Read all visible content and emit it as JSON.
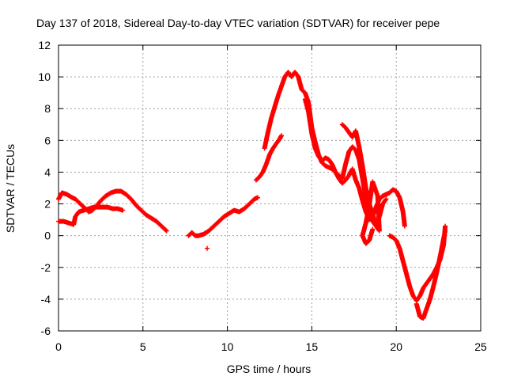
{
  "chart_data": {
    "type": "scatter",
    "title": "Day 137 of 2018, Sidereal Day-to-day VTEC variation (SDTVAR) for receiver pepe",
    "xlabel": "GPS time / hours",
    "ylabel": "SDTVAR / TECUs",
    "xlim": [
      0,
      25
    ],
    "ylim": [
      -6,
      12
    ],
    "xticks": [
      0,
      5,
      10,
      15,
      20,
      25
    ],
    "yticks": [
      -6,
      -4,
      -2,
      0,
      2,
      4,
      6,
      8,
      10,
      12
    ],
    "grid": true,
    "marker": "+",
    "color": "#ff0000",
    "series": [
      {
        "segments": [
          [
            [
              0.0,
              2.3
            ],
            [
              0.2,
              2.7
            ],
            [
              0.5,
              2.6
            ],
            [
              0.8,
              2.4
            ],
            [
              1.0,
              2.3
            ],
            [
              1.2,
              2.1
            ],
            [
              1.4,
              1.9
            ],
            [
              1.6,
              1.7
            ],
            [
              1.8,
              1.5
            ],
            [
              2.0,
              1.6
            ],
            [
              2.2,
              1.8
            ],
            [
              2.5,
              2.2
            ],
            [
              2.8,
              2.5
            ],
            [
              3.1,
              2.7
            ],
            [
              3.4,
              2.8
            ],
            [
              3.7,
              2.8
            ],
            [
              4.0,
              2.6
            ],
            [
              4.3,
              2.3
            ],
            [
              4.6,
              1.9
            ],
            [
              4.9,
              1.6
            ],
            [
              5.2,
              1.3
            ],
            [
              5.5,
              1.1
            ],
            [
              5.8,
              0.9
            ],
            [
              6.1,
              0.6
            ],
            [
              6.4,
              0.3
            ]
          ],
          [
            [
              0.0,
              0.9
            ],
            [
              0.3,
              0.9
            ],
            [
              0.6,
              0.8
            ],
            [
              0.9,
              0.7
            ],
            [
              1.0,
              1.2
            ],
            [
              1.2,
              1.5
            ],
            [
              1.5,
              1.6
            ],
            [
              1.8,
              1.7
            ],
            [
              2.1,
              1.8
            ],
            [
              2.5,
              1.8
            ],
            [
              2.9,
              1.8
            ],
            [
              3.2,
              1.7
            ],
            [
              3.5,
              1.7
            ],
            [
              3.8,
              1.6
            ]
          ],
          [
            [
              7.7,
              0.0
            ],
            [
              7.9,
              0.2
            ],
            [
              8.1,
              0.0
            ],
            [
              8.3,
              0.0
            ],
            [
              8.6,
              0.1
            ],
            [
              8.9,
              0.3
            ],
            [
              9.2,
              0.6
            ],
            [
              9.5,
              0.9
            ],
            [
              9.8,
              1.2
            ],
            [
              10.1,
              1.4
            ],
            [
              10.4,
              1.6
            ],
            [
              10.7,
              1.5
            ],
            [
              11.0,
              1.7
            ],
            [
              11.3,
              2.0
            ],
            [
              11.6,
              2.3
            ],
            [
              11.8,
              2.4
            ]
          ],
          [
            [
              8.8,
              -0.8
            ]
          ],
          [
            [
              11.7,
              3.5
            ],
            [
              11.9,
              3.7
            ],
            [
              12.1,
              4.0
            ],
            [
              12.3,
              4.5
            ],
            [
              12.5,
              5.1
            ],
            [
              12.7,
              5.5
            ],
            [
              12.9,
              5.8
            ],
            [
              13.1,
              6.1
            ],
            [
              13.2,
              6.3
            ]
          ],
          [
            [
              12.2,
              5.5
            ],
            [
              12.4,
              6.5
            ],
            [
              12.6,
              7.4
            ],
            [
              12.8,
              8.1
            ],
            [
              13.0,
              8.8
            ],
            [
              13.2,
              9.4
            ],
            [
              13.4,
              10.0
            ],
            [
              13.6,
              10.3
            ],
            [
              13.8,
              10.0
            ],
            [
              14.0,
              10.3
            ],
            [
              14.2,
              10.0
            ],
            [
              14.4,
              9.2
            ],
            [
              14.6,
              9.0
            ],
            [
              14.8,
              8.4
            ],
            [
              15.0,
              6.8
            ],
            [
              15.2,
              5.9
            ],
            [
              15.4,
              5.1
            ],
            [
              15.6,
              4.6
            ],
            [
              15.8,
              4.4
            ],
            [
              16.0,
              4.3
            ],
            [
              16.2,
              4.2
            ],
            [
              16.4,
              4.0
            ],
            [
              16.6,
              3.6
            ],
            [
              16.8,
              3.3
            ],
            [
              17.0,
              3.5
            ],
            [
              17.2,
              3.8
            ],
            [
              17.4,
              4.2
            ],
            [
              17.6,
              3.5
            ],
            [
              17.8,
              3.0
            ],
            [
              18.0,
              2.2
            ],
            [
              18.2,
              1.5
            ],
            [
              18.4,
              1.0
            ],
            [
              18.6,
              1.2
            ],
            [
              18.8,
              1.8
            ],
            [
              19.0,
              2.3
            ],
            [
              19.2,
              2.5
            ],
            [
              19.4,
              2.6
            ],
            [
              19.6,
              2.7
            ],
            [
              19.8,
              2.9
            ],
            [
              20.0,
              2.8
            ],
            [
              20.2,
              2.4
            ],
            [
              20.4,
              1.5
            ],
            [
              20.5,
              0.6
            ]
          ],
          [
            [
              14.6,
              8.6
            ],
            [
              14.8,
              7.8
            ],
            [
              15.0,
              6.4
            ],
            [
              15.2,
              5.5
            ],
            [
              15.4,
              5.0
            ],
            [
              15.6,
              4.7
            ],
            [
              15.8,
              4.9
            ],
            [
              16.0,
              4.8
            ],
            [
              16.2,
              4.5
            ],
            [
              16.4,
              4.0
            ],
            [
              16.6,
              3.8
            ],
            [
              16.8,
              3.6
            ],
            [
              17.0,
              4.5
            ],
            [
              17.2,
              5.3
            ],
            [
              17.4,
              5.6
            ],
            [
              17.6,
              5.4
            ],
            [
              17.8,
              4.8
            ],
            [
              18.0,
              3.6
            ],
            [
              18.2,
              2.4
            ],
            [
              18.4,
              1.6
            ],
            [
              18.6,
              0.9
            ],
            [
              18.8,
              0.6
            ],
            [
              19.0,
              1.2
            ],
            [
              19.2,
              2.0
            ],
            [
              19.4,
              2.3
            ]
          ],
          [
            [
              16.8,
              7.0
            ],
            [
              17.0,
              6.8
            ],
            [
              17.2,
              6.5
            ],
            [
              17.4,
              6.2
            ],
            [
              17.6,
              6.6
            ],
            [
              17.8,
              5.6
            ],
            [
              18.0,
              4.4
            ],
            [
              18.2,
              3.0
            ],
            [
              18.4,
              2.0
            ],
            [
              18.6,
              1.4
            ],
            [
              18.8,
              0.6
            ],
            [
              19.0,
              0.3
            ],
            [
              18.9,
              2.5
            ],
            [
              18.6,
              3.4
            ],
            [
              18.4,
              1.9
            ],
            [
              18.2,
              0.8
            ],
            [
              18.0,
              0.0
            ],
            [
              18.2,
              -0.5
            ],
            [
              18.4,
              -0.3
            ],
            [
              18.6,
              0.4
            ]
          ],
          [
            [
              19.6,
              0.0
            ],
            [
              19.8,
              -0.1
            ],
            [
              20.0,
              -0.3
            ],
            [
              20.2,
              -0.8
            ],
            [
              20.4,
              -1.6
            ],
            [
              20.6,
              -2.4
            ],
            [
              20.8,
              -3.2
            ],
            [
              21.0,
              -3.8
            ],
            [
              21.2,
              -4.1
            ],
            [
              21.4,
              -3.8
            ],
            [
              21.6,
              -3.3
            ],
            [
              21.8,
              -3.0
            ],
            [
              22.0,
              -2.7
            ],
            [
              22.2,
              -2.4
            ],
            [
              22.4,
              -2.0
            ],
            [
              22.6,
              -1.5
            ],
            [
              22.8,
              -0.6
            ],
            [
              22.9,
              0.6
            ]
          ],
          [
            [
              21.2,
              -4.3
            ],
            [
              21.4,
              -5.1
            ],
            [
              21.6,
              -5.2
            ],
            [
              21.8,
              -4.6
            ],
            [
              22.0,
              -4.0
            ],
            [
              22.2,
              -3.2
            ],
            [
              22.4,
              -2.3
            ],
            [
              22.6,
              -1.3
            ],
            [
              22.8,
              -0.2
            ],
            [
              22.9,
              0.3
            ]
          ]
        ]
      }
    ]
  }
}
